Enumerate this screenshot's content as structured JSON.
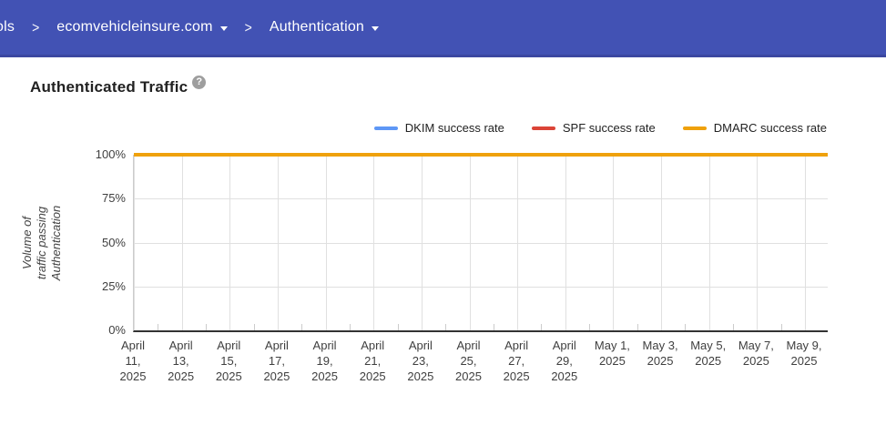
{
  "header": {
    "bg_color": "#4252b4",
    "breadcrumb": {
      "clipped_prefix": "ols",
      "separator": ">",
      "items": [
        {
          "label": "ecomvehicleinsure.com",
          "has_dropdown": true
        },
        {
          "label": "Authentication",
          "has_dropdown": true
        }
      ]
    }
  },
  "page": {
    "title": "Authenticated Traffic",
    "help_icon_glyph": "?"
  },
  "chart_data": {
    "type": "line",
    "title": "Authenticated Traffic",
    "categories": [
      "April\n11,\n2025",
      "April\n13,\n2025",
      "April\n15,\n2025",
      "April\n17,\n2025",
      "April\n19,\n2025",
      "April\n21,\n2025",
      "April\n23,\n2025",
      "April\n25,\n2025",
      "April\n27,\n2025",
      "April\n29,\n2025",
      "May 1,\n2025",
      "May 3,\n2025",
      "May 5,\n2025",
      "May 7,\n2025",
      "May 9,\n2025"
    ],
    "series": [
      {
        "name": "DKIM success rate",
        "color": "#5e97f6",
        "values": [
          100,
          100,
          100,
          100,
          100,
          100,
          100,
          100,
          100,
          100,
          100,
          100,
          100,
          100,
          100
        ]
      },
      {
        "name": "SPF success rate",
        "color": "#db4437",
        "values": [
          100,
          100,
          100,
          100,
          100,
          100,
          100,
          100,
          100,
          100,
          100,
          100,
          100,
          100,
          100
        ]
      },
      {
        "name": "DMARC success rate",
        "color": "#efa10c",
        "values": [
          100,
          100,
          100,
          100,
          100,
          100,
          100,
          100,
          100,
          100,
          100,
          100,
          100,
          100,
          100
        ]
      }
    ],
    "xlabel": "",
    "ylabel": "Volume of traffic passing\nAuthentication",
    "yticks": [
      0,
      25,
      50,
      75,
      100
    ],
    "ytick_suffix": "%",
    "ylim": [
      0,
      100
    ],
    "grid": true,
    "legend_position": "top-right"
  }
}
